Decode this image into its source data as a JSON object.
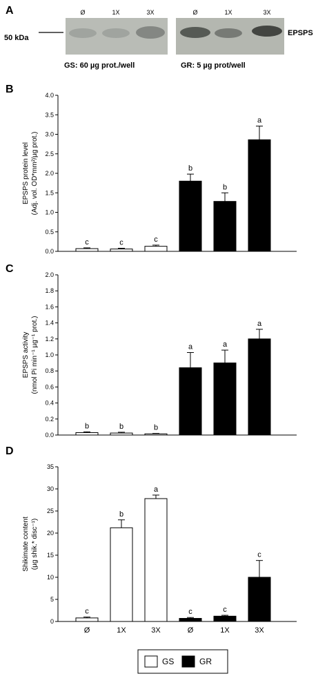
{
  "blot": {
    "panel": "A",
    "marker": "50 kDa",
    "band_label": "EPSPS",
    "lanes_gs": [
      "Ø",
      "1X",
      "3X"
    ],
    "lanes_gr": [
      "Ø",
      "1X",
      "3X"
    ],
    "gs_caption": "GS: 60 µg prot./well",
    "gr_caption": "GR: 5 µg prot/well"
  },
  "legend": {
    "gs": "GS",
    "gr": "GR",
    "gs_color": "#ffffff",
    "gr_color": "#000000"
  },
  "chart_data": [
    {
      "panel": "B",
      "type": "bar",
      "categories": [
        "Ø",
        "1X",
        "3X",
        "Ø",
        "1X",
        "3X"
      ],
      "groups": [
        "GS",
        "GS",
        "GS",
        "GR",
        "GR",
        "GR"
      ],
      "values": [
        0.07,
        0.06,
        0.13,
        1.8,
        1.28,
        2.86
      ],
      "errors": [
        0.02,
        0.02,
        0.03,
        0.18,
        0.22,
        0.35
      ],
      "letters": [
        "c",
        "c",
        "c",
        "b",
        "b",
        "a"
      ],
      "ylabel_line1": "EPSPS protein level",
      "ylabel_line2": "(Adj. vol. OD*mm²/µg prot.)",
      "ylim": [
        0,
        4.0
      ],
      "yticks": [
        "0.0",
        "0.5",
        "1.0",
        "1.5",
        "2.0",
        "2.5",
        "3.0",
        "3.5",
        "4.0"
      ]
    },
    {
      "panel": "C",
      "type": "bar",
      "categories": [
        "Ø",
        "1X",
        "3X",
        "Ø",
        "1X",
        "3X"
      ],
      "groups": [
        "GS",
        "GS",
        "GS",
        "GR",
        "GR",
        "GR"
      ],
      "values": [
        0.03,
        0.025,
        0.015,
        0.84,
        0.9,
        1.2
      ],
      "errors": [
        0.01,
        0.01,
        0.005,
        0.19,
        0.16,
        0.12
      ],
      "letters": [
        "b",
        "b",
        "b",
        "a",
        "a",
        "a"
      ],
      "ylabel_line1": "EPSPS activity",
      "ylabel_line2": "(nmol Pi min⁻¹ µg⁻¹ prot.)",
      "ylim": [
        0,
        2.0
      ],
      "yticks": [
        "0.0",
        "0.2",
        "0.4",
        "0.6",
        "0.8",
        "1.0",
        "1.2",
        "1.4",
        "1.6",
        "1.8",
        "2.0"
      ]
    },
    {
      "panel": "D",
      "type": "bar",
      "categories": [
        "Ø",
        "1X",
        "3X",
        "Ø",
        "1X",
        "3X"
      ],
      "groups": [
        "GS",
        "GS",
        "GS",
        "GR",
        "GR",
        "GR"
      ],
      "values": [
        0.8,
        21.2,
        27.8,
        0.7,
        1.2,
        10.0
      ],
      "errors": [
        0.2,
        1.8,
        0.8,
        0.2,
        0.2,
        3.8
      ],
      "letters": [
        "c",
        "b",
        "a",
        "c",
        "c",
        "c"
      ],
      "ylabel_line1": "Shikimate content",
      "ylabel_line2": "(µg shik.* disc⁻¹)",
      "ylim": [
        0,
        35
      ],
      "yticks": [
        "0",
        "5",
        "10",
        "15",
        "20",
        "25",
        "30",
        "35"
      ],
      "show_xlabels": true
    }
  ]
}
